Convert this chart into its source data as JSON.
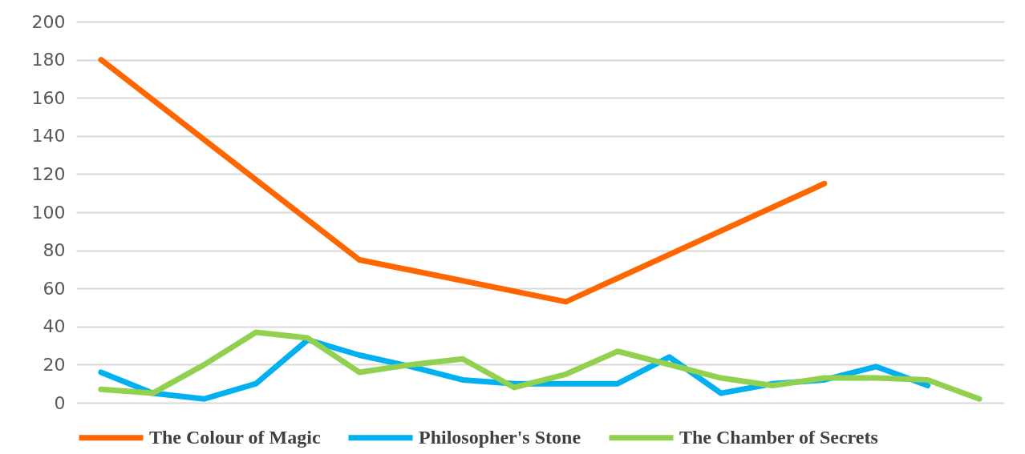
{
  "chart_data": {
    "type": "line",
    "categories": [
      null,
      null,
      null,
      null,
      null,
      null,
      null,
      null,
      null,
      null,
      null,
      null,
      null,
      null,
      null,
      null,
      null,
      null
    ],
    "series": [
      {
        "name": "The Colour of Magic",
        "color": "#ff6600",
        "values": [
          180,
          null,
          null,
          null,
          null,
          75,
          null,
          null,
          null,
          53,
          null,
          null,
          null,
          null,
          115,
          null,
          null,
          null
        ]
      },
      {
        "name": "Philosopher's Stone",
        "color": "#00b0f0",
        "values": [
          16,
          5,
          2,
          10,
          33,
          25,
          19,
          12,
          10,
          10,
          10,
          24,
          5,
          10,
          12,
          19,
          9,
          null
        ]
      },
      {
        "name": "The Chamber of Secrets",
        "color": "#92d050",
        "values": [
          7,
          5,
          20,
          37,
          34,
          16,
          20,
          23,
          8,
          15,
          27,
          20,
          13,
          9,
          13,
          13,
          12,
          2
        ]
      }
    ],
    "ylim": [
      0,
      200
    ],
    "yticks": [
      0,
      20,
      40,
      60,
      80,
      100,
      120,
      140,
      160,
      180,
      200
    ],
    "grid": "y",
    "legend": "bottom",
    "tick_labels": "y",
    "marker": "none",
    "line_style": "solid"
  }
}
